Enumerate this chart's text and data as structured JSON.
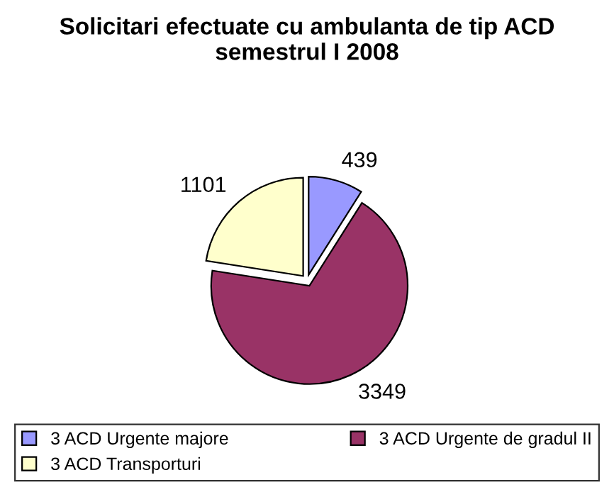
{
  "chart_data": {
    "type": "pie",
    "title": "Solicitari efectuate cu ambulanta de tip ACD semestrul I 2008",
    "categories": [
      "3 ACD Urgente majore",
      "3 ACD Urgente de gradul II",
      "3 ACD Transporturi"
    ],
    "values": [
      439,
      3349,
      1101
    ],
    "colors": [
      "#9999ff",
      "#993366",
      "#ffffcc"
    ],
    "data_labels": true,
    "legend": "bottom"
  }
}
